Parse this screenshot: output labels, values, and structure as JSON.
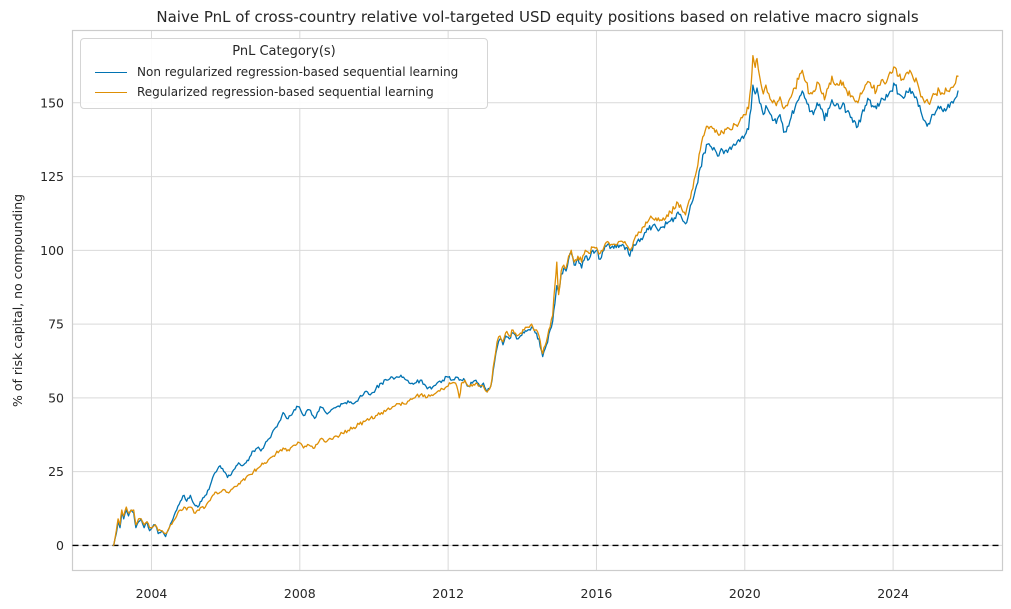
{
  "chart_data": {
    "type": "line",
    "title": "Naive PnL of cross-country relative vol-targeted USD equity positions based on relative macro signals",
    "xlabel": "",
    "ylabel": "% of risk capital, no compounding",
    "legend_title": "PnL Category(s)",
    "legend_position": "upper left",
    "grid": true,
    "grid_color": "#d9d9d9",
    "spine_color": "#cccccc",
    "background_color": "#ffffff",
    "x_ticks": [
      2004,
      2008,
      2012,
      2016,
      2020,
      2024
    ],
    "y_ticks": [
      0,
      25,
      50,
      75,
      100,
      125,
      150
    ],
    "x_range": [
      2001.87,
      2026.95
    ],
    "y_range": [
      -8.5,
      174.5
    ],
    "zero_line": {
      "value": 0,
      "style": "dashed",
      "color": "#000000"
    },
    "x": [
      2002.98,
      2003.05,
      2003.1,
      2003.15,
      2003.2,
      2003.25,
      2003.32,
      2003.38,
      2003.45,
      2003.52,
      2003.58,
      2003.65,
      2003.72,
      2003.8,
      2003.88,
      2003.95,
      2004.02,
      2004.1,
      2004.18,
      2004.28,
      2004.38,
      2004.48,
      2004.58,
      2004.68,
      2004.78,
      2004.88,
      2004.95,
      2005.05,
      2005.15,
      2005.25,
      2005.35,
      2005.45,
      2005.55,
      2005.65,
      2005.75,
      2005.85,
      2005.95,
      2006.05,
      2006.15,
      2006.25,
      2006.35,
      2006.45,
      2006.55,
      2006.65,
      2006.75,
      2006.85,
      2006.95,
      2007.05,
      2007.15,
      2007.25,
      2007.35,
      2007.45,
      2007.55,
      2007.65,
      2007.75,
      2007.85,
      2007.95,
      2008.1,
      2008.25,
      2008.4,
      2008.55,
      2008.7,
      2008.85,
      2009.0,
      2009.15,
      2009.3,
      2009.45,
      2009.6,
      2009.75,
      2009.9,
      2010.05,
      2010.2,
      2010.35,
      2010.5,
      2010.65,
      2010.8,
      2010.95,
      2011.1,
      2011.25,
      2011.4,
      2011.55,
      2011.7,
      2011.85,
      2012.0,
      2012.1,
      2012.2,
      2012.3,
      2012.36,
      2012.45,
      2012.55,
      2012.65,
      2012.75,
      2012.85,
      2012.95,
      2013.05,
      2013.15,
      2013.25,
      2013.32,
      2013.4,
      2013.48,
      2013.55,
      2013.65,
      2013.75,
      2013.85,
      2013.95,
      2014.05,
      2014.15,
      2014.25,
      2014.35,
      2014.45,
      2014.55,
      2014.65,
      2014.75,
      2014.82,
      2014.88,
      2014.93,
      2014.98,
      2015.05,
      2015.12,
      2015.18,
      2015.25,
      2015.32,
      2015.4,
      2015.5,
      2015.6,
      2015.7,
      2015.8,
      2015.9,
      2016.0,
      2016.1,
      2016.2,
      2016.3,
      2016.4,
      2016.5,
      2016.6,
      2016.7,
      2016.8,
      2016.9,
      2017.0,
      2017.1,
      2017.2,
      2017.3,
      2017.4,
      2017.5,
      2017.6,
      2017.7,
      2017.8,
      2017.9,
      2018.0,
      2018.1,
      2018.2,
      2018.3,
      2018.4,
      2018.5,
      2018.6,
      2018.7,
      2018.8,
      2018.9,
      2019.0,
      2019.1,
      2019.2,
      2019.3,
      2019.4,
      2019.5,
      2019.6,
      2019.7,
      2019.8,
      2019.9,
      2020.0,
      2020.1,
      2020.17,
      2020.22,
      2020.28,
      2020.33,
      2020.4,
      2020.5,
      2020.57,
      2020.65,
      2020.75,
      2020.85,
      2020.95,
      2021.05,
      2021.15,
      2021.25,
      2021.35,
      2021.45,
      2021.55,
      2021.65,
      2021.75,
      2021.85,
      2021.95,
      2022.05,
      2022.15,
      2022.25,
      2022.35,
      2022.45,
      2022.55,
      2022.65,
      2022.75,
      2022.85,
      2022.95,
      2023.05,
      2023.15,
      2023.25,
      2023.35,
      2023.45,
      2023.55,
      2023.65,
      2023.75,
      2023.85,
      2023.95,
      2024.05,
      2024.15,
      2024.25,
      2024.35,
      2024.45,
      2024.55,
      2024.65,
      2024.75,
      2024.85,
      2024.95,
      2025.05,
      2025.15,
      2025.25,
      2025.35,
      2025.45,
      2025.55,
      2025.65,
      2025.75
    ],
    "series": [
      {
        "name": "Non regularized regression-based sequential learning",
        "color": "#0173b2",
        "values": [
          0,
          4,
          8,
          6,
          11,
          9,
          12,
          10,
          12,
          11,
          6,
          8,
          9,
          6,
          8,
          5,
          6,
          7,
          4,
          5,
          3,
          6,
          9,
          12,
          15,
          17,
          15,
          17,
          14,
          13,
          15,
          17,
          19,
          23,
          25,
          27,
          25,
          23,
          24,
          26,
          28,
          27,
          28,
          30,
          32,
          33,
          32,
          34,
          36,
          38,
          40,
          42,
          45,
          43,
          44,
          46,
          47,
          44,
          46,
          43,
          47,
          45,
          46,
          47,
          48,
          49,
          48,
          50,
          52,
          51,
          53,
          55,
          56,
          57,
          57,
          57,
          55,
          55,
          56,
          54,
          53,
          55,
          56,
          57,
          56,
          57,
          56,
          56,
          56,
          54,
          55,
          56,
          54,
          55,
          52,
          54,
          62,
          67,
          70,
          68,
          71,
          70,
          72,
          70,
          71,
          72,
          73,
          74,
          72,
          70,
          64,
          68,
          73,
          76,
          82,
          88,
          86,
          92,
          94,
          93,
          97,
          99,
          95,
          97,
          94,
          98,
          97,
          100,
          100,
          97,
          100,
          102,
          101,
          102,
          101,
          102,
          101,
          98,
          102,
          103,
          104,
          106,
          107,
          108,
          108,
          107,
          108,
          109,
          110,
          111,
          113,
          111,
          109,
          113,
          117,
          122,
          128,
          133,
          136,
          135,
          134,
          132,
          134,
          134,
          135,
          136,
          137,
          138,
          139,
          141,
          148,
          156,
          153,
          155,
          150,
          146,
          149,
          147,
          144,
          143,
          146,
          140,
          142,
          145,
          148,
          151,
          154,
          151,
          147,
          146,
          150,
          148,
          144,
          148,
          151,
          149,
          148,
          150,
          147,
          145,
          144,
          142,
          146,
          149,
          151,
          149,
          148,
          150,
          151,
          152,
          154,
          156,
          153,
          152,
          154,
          155,
          153,
          151,
          147,
          144,
          143,
          146,
          147,
          148,
          147,
          148,
          150,
          151,
          154
        ]
      },
      {
        "name": "Regularized regression-based sequential learning",
        "color": "#de8f05",
        "values": [
          0,
          5,
          9,
          7,
          12,
          10,
          13,
          11,
          12,
          12,
          7,
          9,
          9,
          7,
          8,
          6,
          6,
          7,
          5,
          5,
          4,
          6,
          8,
          10,
          12,
          13,
          12,
          13,
          11,
          12,
          13,
          13,
          15,
          17,
          18,
          18,
          19,
          18,
          19,
          20,
          21,
          22,
          23,
          24,
          25,
          26,
          27,
          28,
          29,
          30,
          31,
          32,
          33,
          32,
          33,
          34,
          35,
          33,
          34,
          33,
          36,
          35,
          36,
          37,
          38,
          39,
          40,
          41,
          42,
          43,
          44,
          45,
          46,
          47,
          48,
          48,
          49,
          50,
          51,
          50,
          51,
          52,
          53,
          54,
          55,
          55,
          50,
          55,
          56,
          54,
          54,
          55,
          54,
          54,
          52,
          54,
          63,
          69,
          71,
          69,
          72,
          71,
          73,
          71,
          72,
          73,
          74,
          75,
          73,
          71,
          65,
          69,
          74,
          78,
          88,
          96,
          85,
          93,
          95,
          94,
          98,
          100,
          96,
          98,
          96,
          100,
          99,
          101,
          101,
          99,
          101,
          103,
          102,
          102,
          103,
          103,
          102,
          100,
          103,
          105,
          106,
          108,
          110,
          111,
          111,
          110,
          111,
          112,
          113,
          114,
          116,
          114,
          112,
          117,
          121,
          127,
          134,
          139,
          142,
          142,
          140,
          139,
          140,
          141,
          141,
          143,
          142,
          145,
          146,
          148,
          156,
          166,
          162,
          165,
          159,
          153,
          156,
          153,
          150,
          149,
          152,
          148,
          149,
          152,
          155,
          158,
          161,
          157,
          153,
          154,
          157,
          154,
          151,
          155,
          159,
          156,
          156,
          157,
          154,
          152,
          151,
          150,
          153,
          156,
          157,
          155,
          154,
          156,
          157,
          158,
          160,
          162,
          159,
          158,
          160,
          161,
          158,
          157,
          152,
          150,
          150,
          152,
          153,
          154,
          153,
          154,
          155,
          156,
          159
        ]
      }
    ]
  }
}
